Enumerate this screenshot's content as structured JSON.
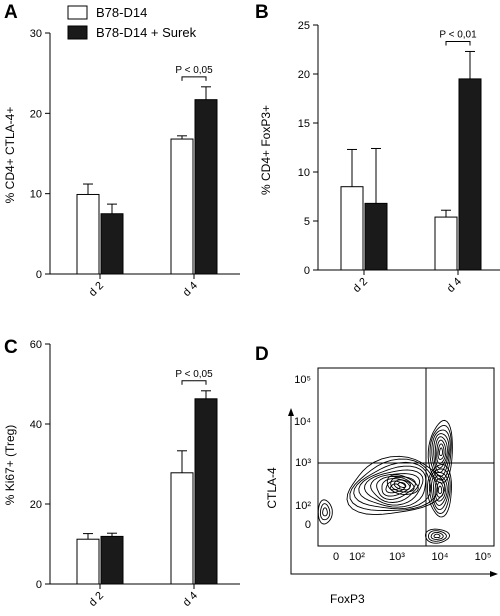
{
  "legend": [
    {
      "label": "B78-D14",
      "color": "#ffffff"
    },
    {
      "label": "B78-D14 + Surek",
      "color": "#1a1a1a"
    }
  ],
  "chart_data": [
    {
      "panel": "A",
      "type": "bar",
      "ylabel": "% CD4+ CTLA-4+",
      "categories": [
        "d 2",
        "d 4"
      ],
      "ylim": [
        0,
        30
      ],
      "yticks": [
        0,
        10,
        20,
        30
      ],
      "series": [
        {
          "name": "B78-D14",
          "values": [
            9.9,
            16.8
          ],
          "errors": [
            1.3,
            0.4
          ]
        },
        {
          "name": "B78-D14 + Surek",
          "values": [
            7.5,
            21.7
          ],
          "errors": [
            1.2,
            1.6
          ]
        }
      ],
      "annotations": [
        {
          "text": "P < 0,05",
          "category": "d 4"
        }
      ]
    },
    {
      "panel": "B",
      "type": "bar",
      "ylabel": "% CD4+ FoxP3+",
      "categories": [
        "d 2",
        "d 4"
      ],
      "ylim": [
        0,
        25
      ],
      "yticks": [
        0,
        5,
        10,
        15,
        20,
        25
      ],
      "series": [
        {
          "name": "B78-D14",
          "values": [
            8.5,
            5.4
          ],
          "errors": [
            3.8,
            0.7
          ]
        },
        {
          "name": "B78-D14 + Surek",
          "values": [
            6.8,
            19.5
          ],
          "errors": [
            5.6,
            2.8
          ]
        }
      ],
      "annotations": [
        {
          "text": "P < 0,01",
          "category": "d 4"
        }
      ]
    },
    {
      "panel": "C",
      "type": "bar",
      "ylabel": "% Ki67+ (Treg)",
      "categories": [
        "d 2",
        "d 4"
      ],
      "ylim": [
        0,
        60
      ],
      "yticks": [
        0,
        20,
        40,
        60
      ],
      "series": [
        {
          "name": "B78-D14",
          "values": [
            11.2,
            27.8
          ],
          "errors": [
            1.4,
            5.5
          ]
        },
        {
          "name": "B78-D14 + Surek",
          "values": [
            11.9,
            46.3
          ],
          "errors": [
            0.8,
            2.0
          ]
        }
      ],
      "annotations": [
        {
          "text": "P < 0,05",
          "category": "d 4"
        }
      ]
    },
    {
      "panel": "D",
      "type": "contour",
      "xlabel": "FoxP3",
      "ylabel": "CTLA-4",
      "xticks": [
        "0",
        "10²",
        "10³",
        "10⁴",
        "10⁵"
      ],
      "yticks": [
        "0",
        "10²",
        "10³",
        "10⁴",
        "10⁵"
      ]
    }
  ]
}
